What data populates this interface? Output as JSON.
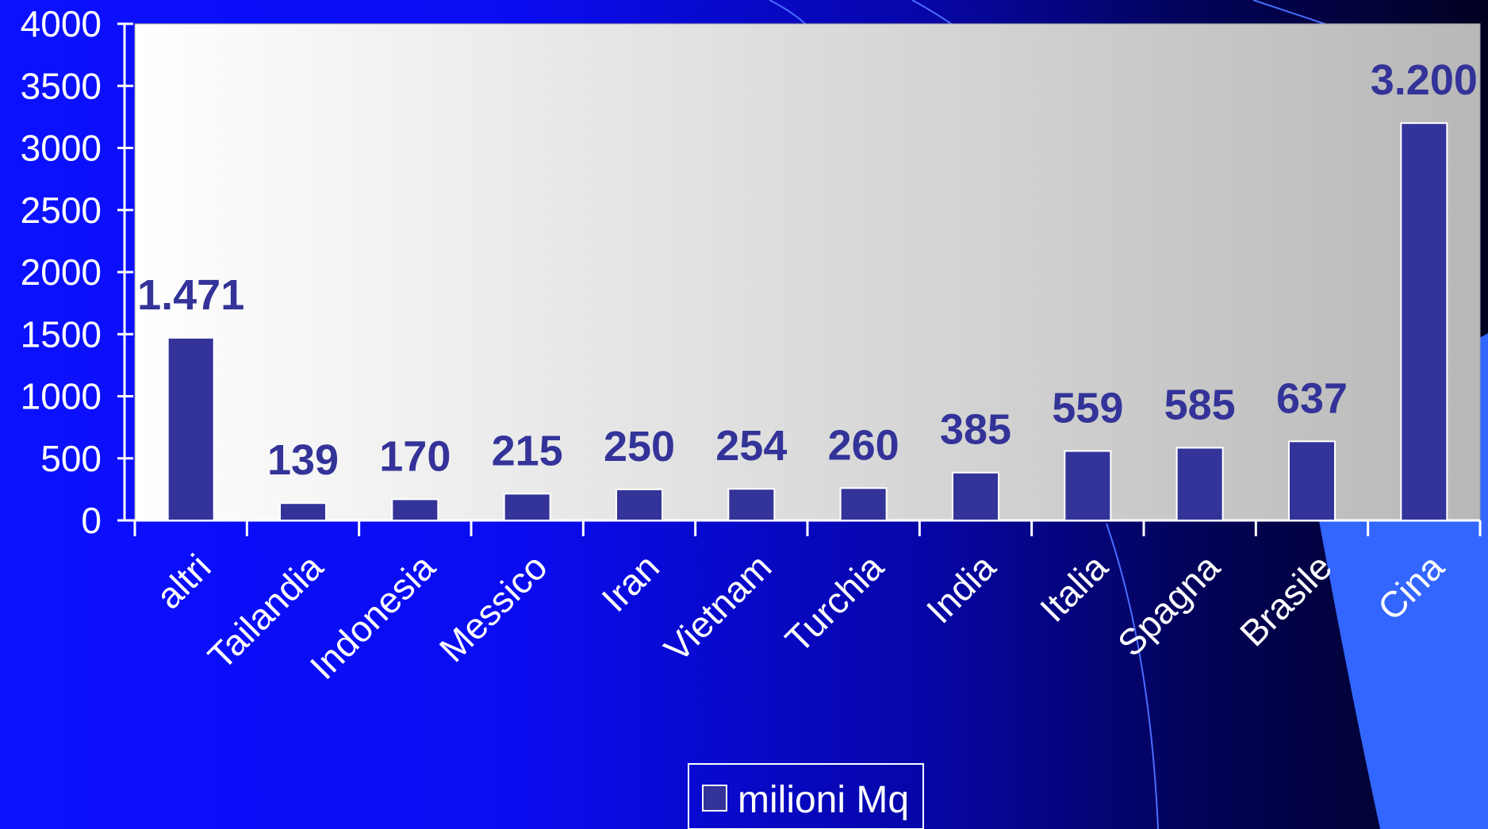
{
  "colors": {
    "bar": "#333399",
    "plot_bg_left": "#ffffff",
    "plot_bg_right": "#b8b8b8",
    "text": "#ffffff",
    "label": "#333399",
    "accent_shape": "#3366ff"
  },
  "chart_data": {
    "type": "bar",
    "categories": [
      "altri",
      "Tailandia",
      "Indonesia",
      "Messico",
      "Iran",
      "Vietnam",
      "Turchia",
      "India",
      "Italia",
      "Spagna",
      "Brasile",
      "Cina"
    ],
    "series": [
      {
        "name": "milioni Mq",
        "values": [
          1471,
          139,
          170,
          215,
          250,
          254,
          260,
          385,
          559,
          585,
          637,
          3200
        ]
      }
    ],
    "data_labels": [
      "1.471",
      "139",
      "170",
      "215",
      "250",
      "254",
      "260",
      "385",
      "559",
      "585",
      "637",
      "3.200"
    ],
    "yticks": [
      0,
      500,
      1000,
      1500,
      2000,
      2500,
      3000,
      3500,
      4000
    ],
    "ylim": [
      0,
      4000
    ],
    "legend": {
      "position": "bottom",
      "label": "milioni Mq"
    }
  }
}
